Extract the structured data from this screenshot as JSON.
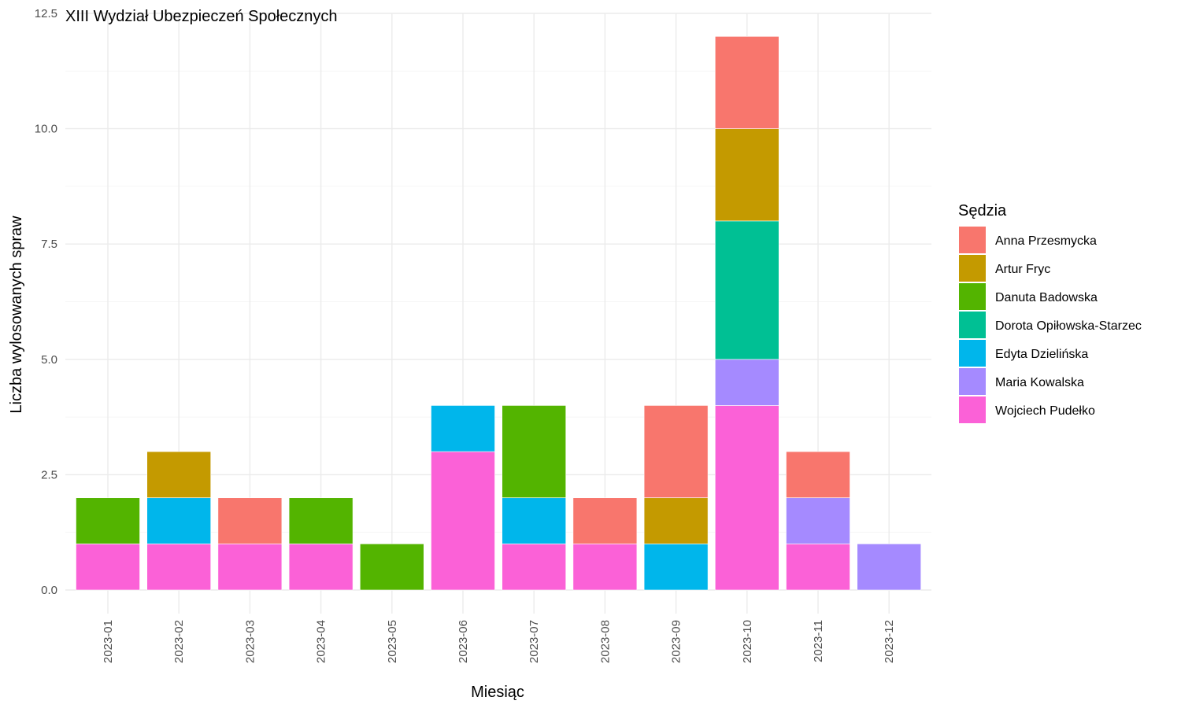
{
  "chart_data": {
    "type": "bar",
    "stacked": true,
    "title": "XIII Wydział Ubezpieczeń Społecznych",
    "xlabel": "Miesiąc",
    "ylabel": "Liczba wylosowanych spraw",
    "ylim": [
      0,
      12.5
    ],
    "y_ticks": [
      "0.0",
      "2.5",
      "5.0",
      "7.5",
      "10.0",
      "12.5"
    ],
    "grid": true,
    "legend": {
      "title": "Sędzia",
      "position": "right"
    },
    "categories": [
      "2023-01",
      "2023-02",
      "2023-03",
      "2023-04",
      "2023-05",
      "2023-06",
      "2023-07",
      "2023-08",
      "2023-09",
      "2023-10",
      "2023-11",
      "2023-12"
    ],
    "stack_order_bottom_to_top": [
      "Wojciech Pudełko",
      "Maria Kowalska",
      "Edyta Dzielińska",
      "Dorota Opiłowska-Starzec",
      "Danuta Badowska",
      "Artur Fryc",
      "Anna Przesmycka"
    ],
    "series": [
      {
        "name": "Anna Przesmycka",
        "color": "#F8766D",
        "values": [
          0,
          0,
          1,
          0,
          0,
          0,
          0,
          1,
          2,
          2,
          1,
          0
        ]
      },
      {
        "name": "Artur Fryc",
        "color": "#C49A00",
        "values": [
          0,
          1,
          0,
          0,
          0,
          0,
          0,
          0,
          1,
          2,
          0,
          0
        ]
      },
      {
        "name": "Danuta Badowska",
        "color": "#53B400",
        "values": [
          1,
          0,
          0,
          1,
          1,
          0,
          2,
          0,
          0,
          0,
          0,
          0
        ]
      },
      {
        "name": "Dorota Opiłowska-Starzec",
        "color": "#00C094",
        "values": [
          0,
          0,
          0,
          0,
          0,
          0,
          0,
          0,
          0,
          3,
          0,
          0
        ]
      },
      {
        "name": "Edyta Dzielińska",
        "color": "#00B6EB",
        "values": [
          0,
          1,
          0,
          0,
          0,
          1,
          1,
          0,
          1,
          0,
          0,
          0
        ]
      },
      {
        "name": "Maria Kowalska",
        "color": "#A58AFF",
        "values": [
          0,
          0,
          0,
          0,
          0,
          0,
          0,
          0,
          0,
          1,
          1,
          1
        ]
      },
      {
        "name": "Wojciech Pudełko",
        "color": "#FB61D7",
        "values": [
          1,
          1,
          1,
          1,
          0,
          3,
          1,
          1,
          0,
          4,
          1,
          0
        ]
      }
    ]
  }
}
